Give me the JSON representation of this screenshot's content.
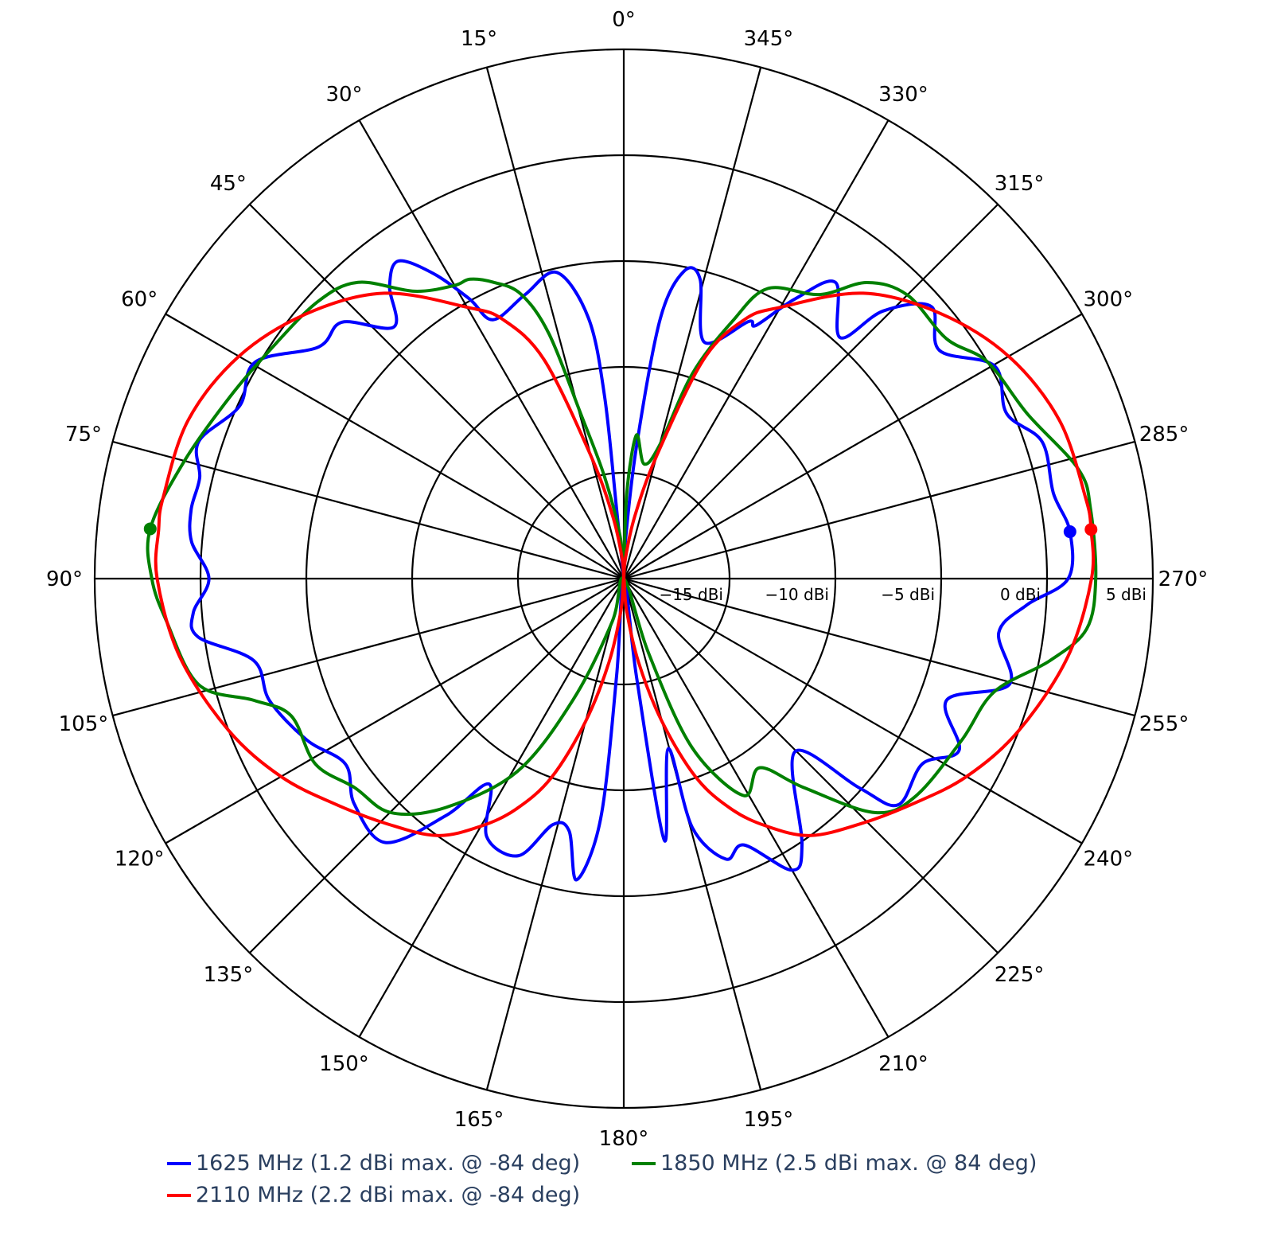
{
  "chart_data": {
    "type": "polar-line",
    "title": "",
    "angular_axis": {
      "rotation": "0 deg at top",
      "direction": "counterclockwise",
      "tick_step_deg": 15,
      "tick_labels": [
        "0°",
        "15°",
        "30°",
        "45°",
        "60°",
        "75°",
        "90°",
        "105°",
        "120°",
        "135°",
        "150°",
        "165°",
        "180°",
        "195°",
        "210°",
        "225°",
        "240°",
        "255°",
        "270°",
        "285°",
        "300°",
        "315°",
        "330°",
        "345°"
      ]
    },
    "radial_axis": {
      "range": [
        -20,
        5
      ],
      "ticks": [
        -15,
        -10,
        -5,
        0,
        5
      ],
      "tick_labels": [
        "−15 dBi",
        "−10 dBi",
        "−5 dBi",
        "0 dBi",
        "5 dBi"
      ],
      "label_angle_deg": 270
    },
    "legend_placement": "bottom",
    "series": [
      {
        "name": "1625 MHz (1.2 dBi max. @ -84 deg)",
        "color": "#0000ff",
        "max_marker": {
          "theta": 276,
          "r": 1.2
        },
        "theta": [
          0,
          5.9,
          6,
          7.7,
          12.3,
          19.2,
          26.8,
          28.9,
          32,
          35.4,
          38.7,
          42.4,
          47.7,
          52.8,
          59.6,
          65.8,
          72.1,
          76.6,
          80.9,
          85.1,
          90,
          94.5,
          97.8,
          102.5,
          109,
          117,
          123.7,
          129.9,
          137.9,
          143.1,
          146.8,
          152,
          159.2,
          163.9,
          167.8,
          171.1,
          174.5,
          175.8,
          180,
          187.4,
          188.8,
          194.7,
          195.4,
          200,
          204.3,
          210,
          213.9,
          224.7,
          228.4,
          230.5,
          238.2,
          242.9,
          249.4,
          254.7,
          261.8,
          266.3,
          270,
          276,
          281.2,
          288.1,
          293.3,
          299.8,
          305.9,
          311.5,
          315.9,
          318.1,
          324.4,
          328.5,
          332.4,
          334.1,
          341.2,
          345.7,
          348.9,
          352,
          354.5,
          357.5,
          360
        ],
        "r": [
          -20,
          -16.7,
          -11.4,
          -7.6,
          -5.2,
          -5.8,
          -6.3,
          -4.9,
          -3.0,
          -1.6,
          -2.3,
          -3.9,
          -2.0,
          -1.9,
          0.2,
          -0.1,
          1.1,
          0.6,
          0.7,
          0.5,
          -0.4,
          0.4,
          0.3,
          -2.1,
          -2.3,
          -3.2,
          -4.2,
          -3.4,
          -3.2,
          -6.0,
          -8.4,
          -6.2,
          -6.0,
          -7.9,
          -7.8,
          -5.6,
          -8.6,
          -15.4,
          -20,
          -15.3,
          -7.5,
          -11.7,
          -7.8,
          -5.9,
          -6.2,
          -4.1,
          -4.9,
          -8.5,
          -5.1,
          -3.2,
          -3.4,
          -2.2,
          -3.7,
          -1.1,
          -2.1,
          -0.9,
          1.0,
          1.2,
          0.7,
          0.8,
          -0.3,
          0.2,
          -1.6,
          -0.6,
          -2.4,
          -4.7,
          -2.8,
          -4.5,
          -6.5,
          -6.5,
          -8.2,
          -5.4,
          -5.2,
          -7.6,
          -13.7,
          -18.2,
          -20
        ]
      },
      {
        "name": "1850 MHz (2.5 dBi max. @ 84 deg)",
        "color": "#008000",
        "max_marker": {
          "theta": 84,
          "r": 2.5
        },
        "theta": [
          0,
          5,
          10.7,
          14.6,
          17,
          19.9,
          23.8,
          27.2,
          30.1,
          36.1,
          41.9,
          47.9,
          57.1,
          65.3,
          75.1,
          84,
          90,
          95.3,
          104,
          108.2,
          112.4,
          121,
          127.8,
          135.1,
          142.1,
          151.1,
          157.3,
          165,
          180,
          198.4,
          202,
          208.9,
          215.7,
          220.7,
          227,
          233.3,
          244.5,
          253,
          259.1,
          263.8,
          270,
          278.4,
          283.5,
          292.2,
          300.8,
          306.6,
          315,
          320.6,
          325.4,
          333.6,
          337.1,
          341.5,
          345,
          350,
          355,
          358,
          360
        ],
        "r": [
          -20,
          -18,
          -15.1,
          -12,
          -7.9,
          -5.7,
          -4.7,
          -4.1,
          -4.0,
          -3.2,
          -1.2,
          -0.5,
          -0.1,
          0.5,
          1.5,
          2.5,
          2.3,
          1.7,
          0.7,
          -1.6,
          -3.0,
          -3.0,
          -3.9,
          -4.4,
          -6.3,
          -9.6,
          -13.8,
          -17.9,
          -20,
          -16.3,
          -11.4,
          -8.3,
          -9.0,
          -7.0,
          -3.8,
          -2.8,
          -2.3,
          -1.7,
          0.5,
          2.0,
          2.3,
          2.3,
          2.1,
          0.6,
          0.0,
          -1.0,
          -1.05,
          -1.9,
          -3.7,
          -4.7,
          -6.8,
          -9.8,
          -13.5,
          -14.5,
          -13.2,
          -16,
          -20
        ]
      },
      {
        "name": "2110 MHz (2.2 dBi max. @ -84 deg)",
        "color": "#ff0000",
        "max_marker": {
          "theta": 276,
          "r": 2.2
        },
        "theta": [
          0,
          5,
          10,
          15,
          20,
          25,
          30,
          40,
          50,
          60,
          70,
          80,
          84,
          90,
          100,
          111,
          120,
          128,
          136,
          144,
          150,
          155,
          160,
          165,
          170,
          175,
          180,
          185,
          190,
          195,
          200,
          205,
          210,
          216,
          224,
          232,
          240,
          249,
          260,
          270,
          276,
          280,
          290,
          300,
          310,
          320,
          330,
          335,
          340,
          345,
          350,
          355,
          360
        ],
        "r": [
          -20,
          -19,
          -17,
          -14,
          -9,
          -6.5,
          -5.2,
          -2.4,
          -0.5,
          1.0,
          1.9,
          2.1,
          2.1,
          2.05,
          1.3,
          0,
          -1.3,
          -2.7,
          -3.9,
          -5,
          -6.5,
          -8,
          -10,
          -13,
          -16,
          -18.5,
          -20,
          -18.5,
          -16,
          -13,
          -10,
          -8,
          -6.5,
          -5,
          -3.9,
          -2.7,
          -1.3,
          0,
          1.3,
          2.1,
          2.2,
          2.15,
          1.9,
          1.0,
          -0.5,
          -2.4,
          -5.2,
          -6.5,
          -9,
          -14,
          -17,
          -19,
          -20
        ]
      }
    ]
  }
}
